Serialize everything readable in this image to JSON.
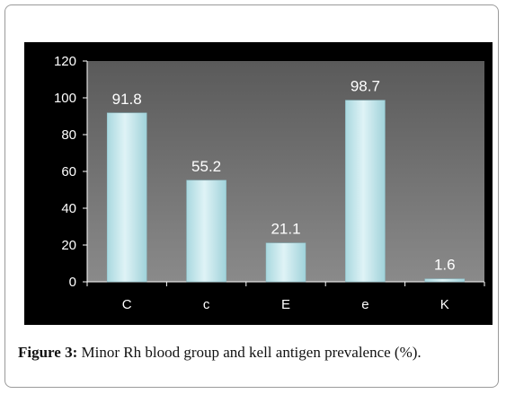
{
  "caption": {
    "label": "Figure 3:",
    "text": "Minor Rh blood group and kell antigen prevalence (%)."
  },
  "colors": {
    "background": "#000000",
    "plot_area": "#6e6e6e",
    "bar_fill": "#bfe4ea",
    "text": "#ffffff"
  },
  "chart_data": {
    "type": "bar",
    "categories": [
      "C",
      "c",
      "E",
      "e",
      "K"
    ],
    "values": [
      91.8,
      55.2,
      21.1,
      98.7,
      1.6
    ],
    "value_labels": [
      "91.8",
      "55.2",
      "21.1",
      "98.7",
      "1.6"
    ],
    "y_ticks": [
      "0",
      "20",
      "40",
      "60",
      "80",
      "100",
      "120"
    ],
    "ylim": [
      0,
      120
    ],
    "grid": false,
    "legend": "none"
  }
}
